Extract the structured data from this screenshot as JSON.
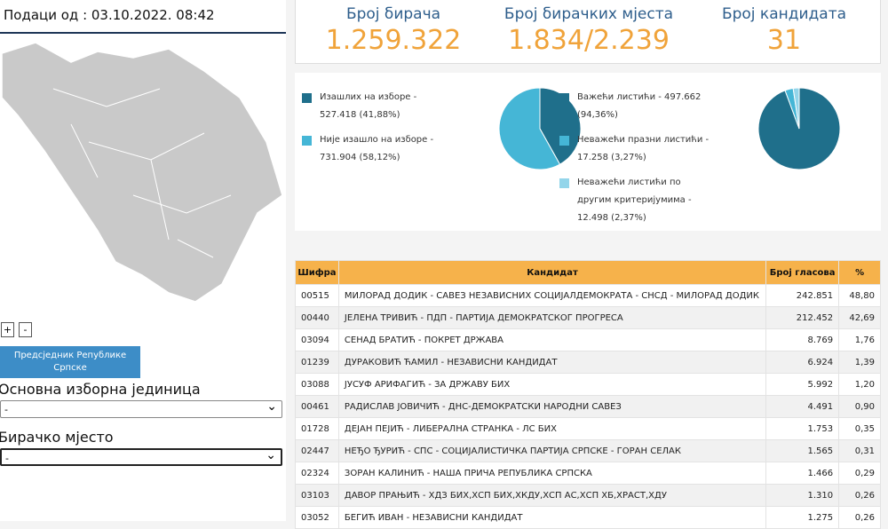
{
  "header": {
    "timestamp": "Подаци од : 03.10.2022. 08:42"
  },
  "controls": {
    "zoom_in": "+",
    "zoom_out": "-",
    "election_button": "Предсједник Републике Српске",
    "unit_label": "Основна изборна јединица",
    "unit_value": "-",
    "station_label": "Бирачко мјесто",
    "station_value": "-"
  },
  "stats": [
    {
      "label": "Број бирача",
      "value": "1.259.322"
    },
    {
      "label": "Број бирачких мјеста",
      "value": "1.834/2.239"
    },
    {
      "label": "Број кандидата",
      "value": "31"
    }
  ],
  "pies": [
    {
      "slices": [
        {
          "lines": [
            "Изашлих на изборе -",
            "527.418 (41,88%)"
          ],
          "percent": 41.88,
          "color": "#1f6f8b"
        },
        {
          "lines": [
            "Није изашло на изборе -",
            "731.904 (58,12%)"
          ],
          "percent": 58.12,
          "color": "#45b6d6"
        }
      ]
    },
    {
      "slices": [
        {
          "lines": [
            "Важећи листићи - 497.662",
            "(94,36%)"
          ],
          "percent": 94.36,
          "color": "#1f6f8b"
        },
        {
          "lines": [
            "Неважећи празни листићи -",
            "17.258 (3,27%)"
          ],
          "percent": 3.27,
          "color": "#45b6d6"
        },
        {
          "lines": [
            "Неважећи листићи по",
            "другим критеријумима -",
            "12.498 (2,37%)"
          ],
          "percent": 2.37,
          "color": "#93d5ea"
        }
      ]
    }
  ],
  "table": {
    "columns": [
      "Шифра",
      "Кандидат",
      "Број гласова",
      "%"
    ],
    "rows": [
      [
        "00515",
        "МИЛОРАД ДОДИК - САВЕЗ НЕЗАВИСНИХ СОЦИЈАЛДЕМОКРАТА - СНСД - МИЛОРАД ДОДИК",
        "242.851",
        "48,80"
      ],
      [
        "00440",
        "ЈЕЛЕНА ТРИВИЋ - ПДП - ПАРТИЈА ДЕМОКРАТСКОГ ПРОГРЕСА",
        "212.452",
        "42,69"
      ],
      [
        "03094",
        "СЕНАД БРАТИЋ - ПОКРЕТ ДРЖАВА",
        "8.769",
        "1,76"
      ],
      [
        "01239",
        "ДУРАКОВИЋ ЋАМИЛ - НЕЗАВИСНИ КАНДИДАТ",
        "6.924",
        "1,39"
      ],
      [
        "03088",
        "ЈУСУФ АРИФАГИЋ - ЗА ДРЖАВУ БИХ",
        "5.992",
        "1,20"
      ],
      [
        "00461",
        "РАДИСЛАВ ЈОВИЧИЋ - ДНС-ДЕМОКРАТСКИ НАРОДНИ САВЕЗ",
        "4.491",
        "0,90"
      ],
      [
        "01728",
        "ДЕЈАН ПЕЈИЋ - ЛИБЕРАЛНА СТРАНКА - ЛС БИХ",
        "1.753",
        "0,35"
      ],
      [
        "02447",
        "НЕЂО ЂУРИЋ - СПС - СОЦИЈАЛИСТИЧКА ПАРТИЈА СРПСКЕ - ГОРАН СЕЛАК",
        "1.565",
        "0,31"
      ],
      [
        "02324",
        "ЗОРАН КАЛИНИЋ - НАША ПРИЧА РЕПУБЛИКА СРПСКА",
        "1.466",
        "0,29"
      ],
      [
        "03103",
        "ДАВОР ПРАЊИЋ - ХДЗ БИХ,ХСП БИХ,ХКДУ,ХСП АС,ХСП ХБ,ХРАСТ,ХДУ",
        "1.310",
        "0,26"
      ],
      [
        "03052",
        "БЕГИЋ ИВАН - НЕЗАВИСНИ КАНДИДАТ",
        "1.275",
        "0,26"
      ]
    ]
  }
}
